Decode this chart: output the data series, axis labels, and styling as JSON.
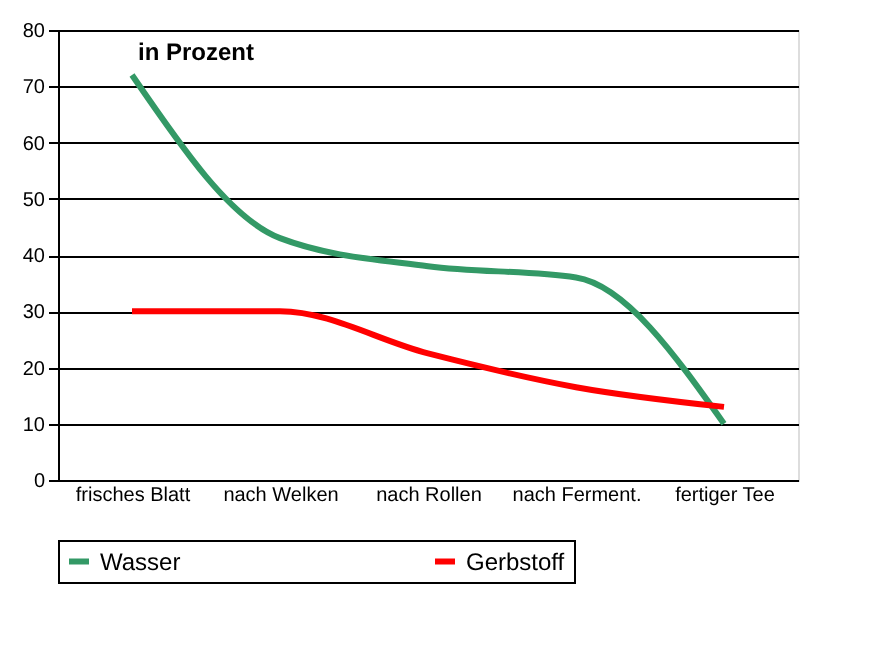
{
  "chart_data": {
    "type": "line",
    "categories": [
      "frisches Blatt",
      "nach Welken",
      "nach Rollen",
      "nach Ferment.",
      "fertiger Tee"
    ],
    "series": [
      {
        "name": "Wasser",
        "color": "#339966",
        "values": [
          72,
          43,
          38,
          36,
          10
        ]
      },
      {
        "name": "Gerbstoff",
        "color": "#ff0000",
        "values": [
          30,
          30,
          22.5,
          16.5,
          13
        ]
      }
    ],
    "ylim": [
      0,
      80
    ],
    "yticks": [
      0,
      10,
      20,
      30,
      40,
      50,
      60,
      70,
      80
    ],
    "grid": "y",
    "legend": "bottom",
    "marker": "none",
    "line_style": "solid",
    "annotations": [
      "in Prozent"
    ]
  }
}
